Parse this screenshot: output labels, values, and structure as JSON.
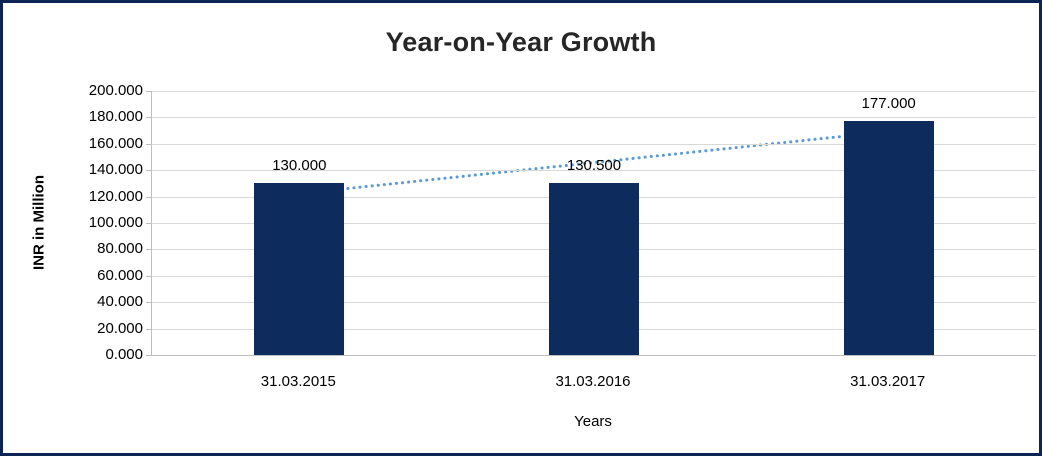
{
  "chart_data": {
    "type": "bar",
    "title": "Year-on-Year Growth",
    "xlabel": "Years",
    "ylabel": "INR in Million",
    "categories": [
      "31.03.2015",
      "31.03.2016",
      "31.03.2017"
    ],
    "values": [
      130.0,
      130.5,
      177.0
    ],
    "value_labels": [
      "130.000",
      "130.500",
      "177.000"
    ],
    "ylim": [
      0,
      200
    ],
    "ytick_step": 20,
    "ytick_labels": [
      "0.000",
      "20.000",
      "40.000",
      "60.000",
      "80.000",
      "100.000",
      "120.000",
      "140.000",
      "160.000",
      "180.000",
      "200.000"
    ],
    "grid": true,
    "legend": "none",
    "bar_color": "#0e2b5e",
    "grid_color": "#d9d9d9",
    "axis_color": "#bfbfbf",
    "trendline": {
      "type": "linear-dotted",
      "color": "#5b9bd5",
      "start_value": 122.3,
      "end_value": 169.3
    }
  }
}
